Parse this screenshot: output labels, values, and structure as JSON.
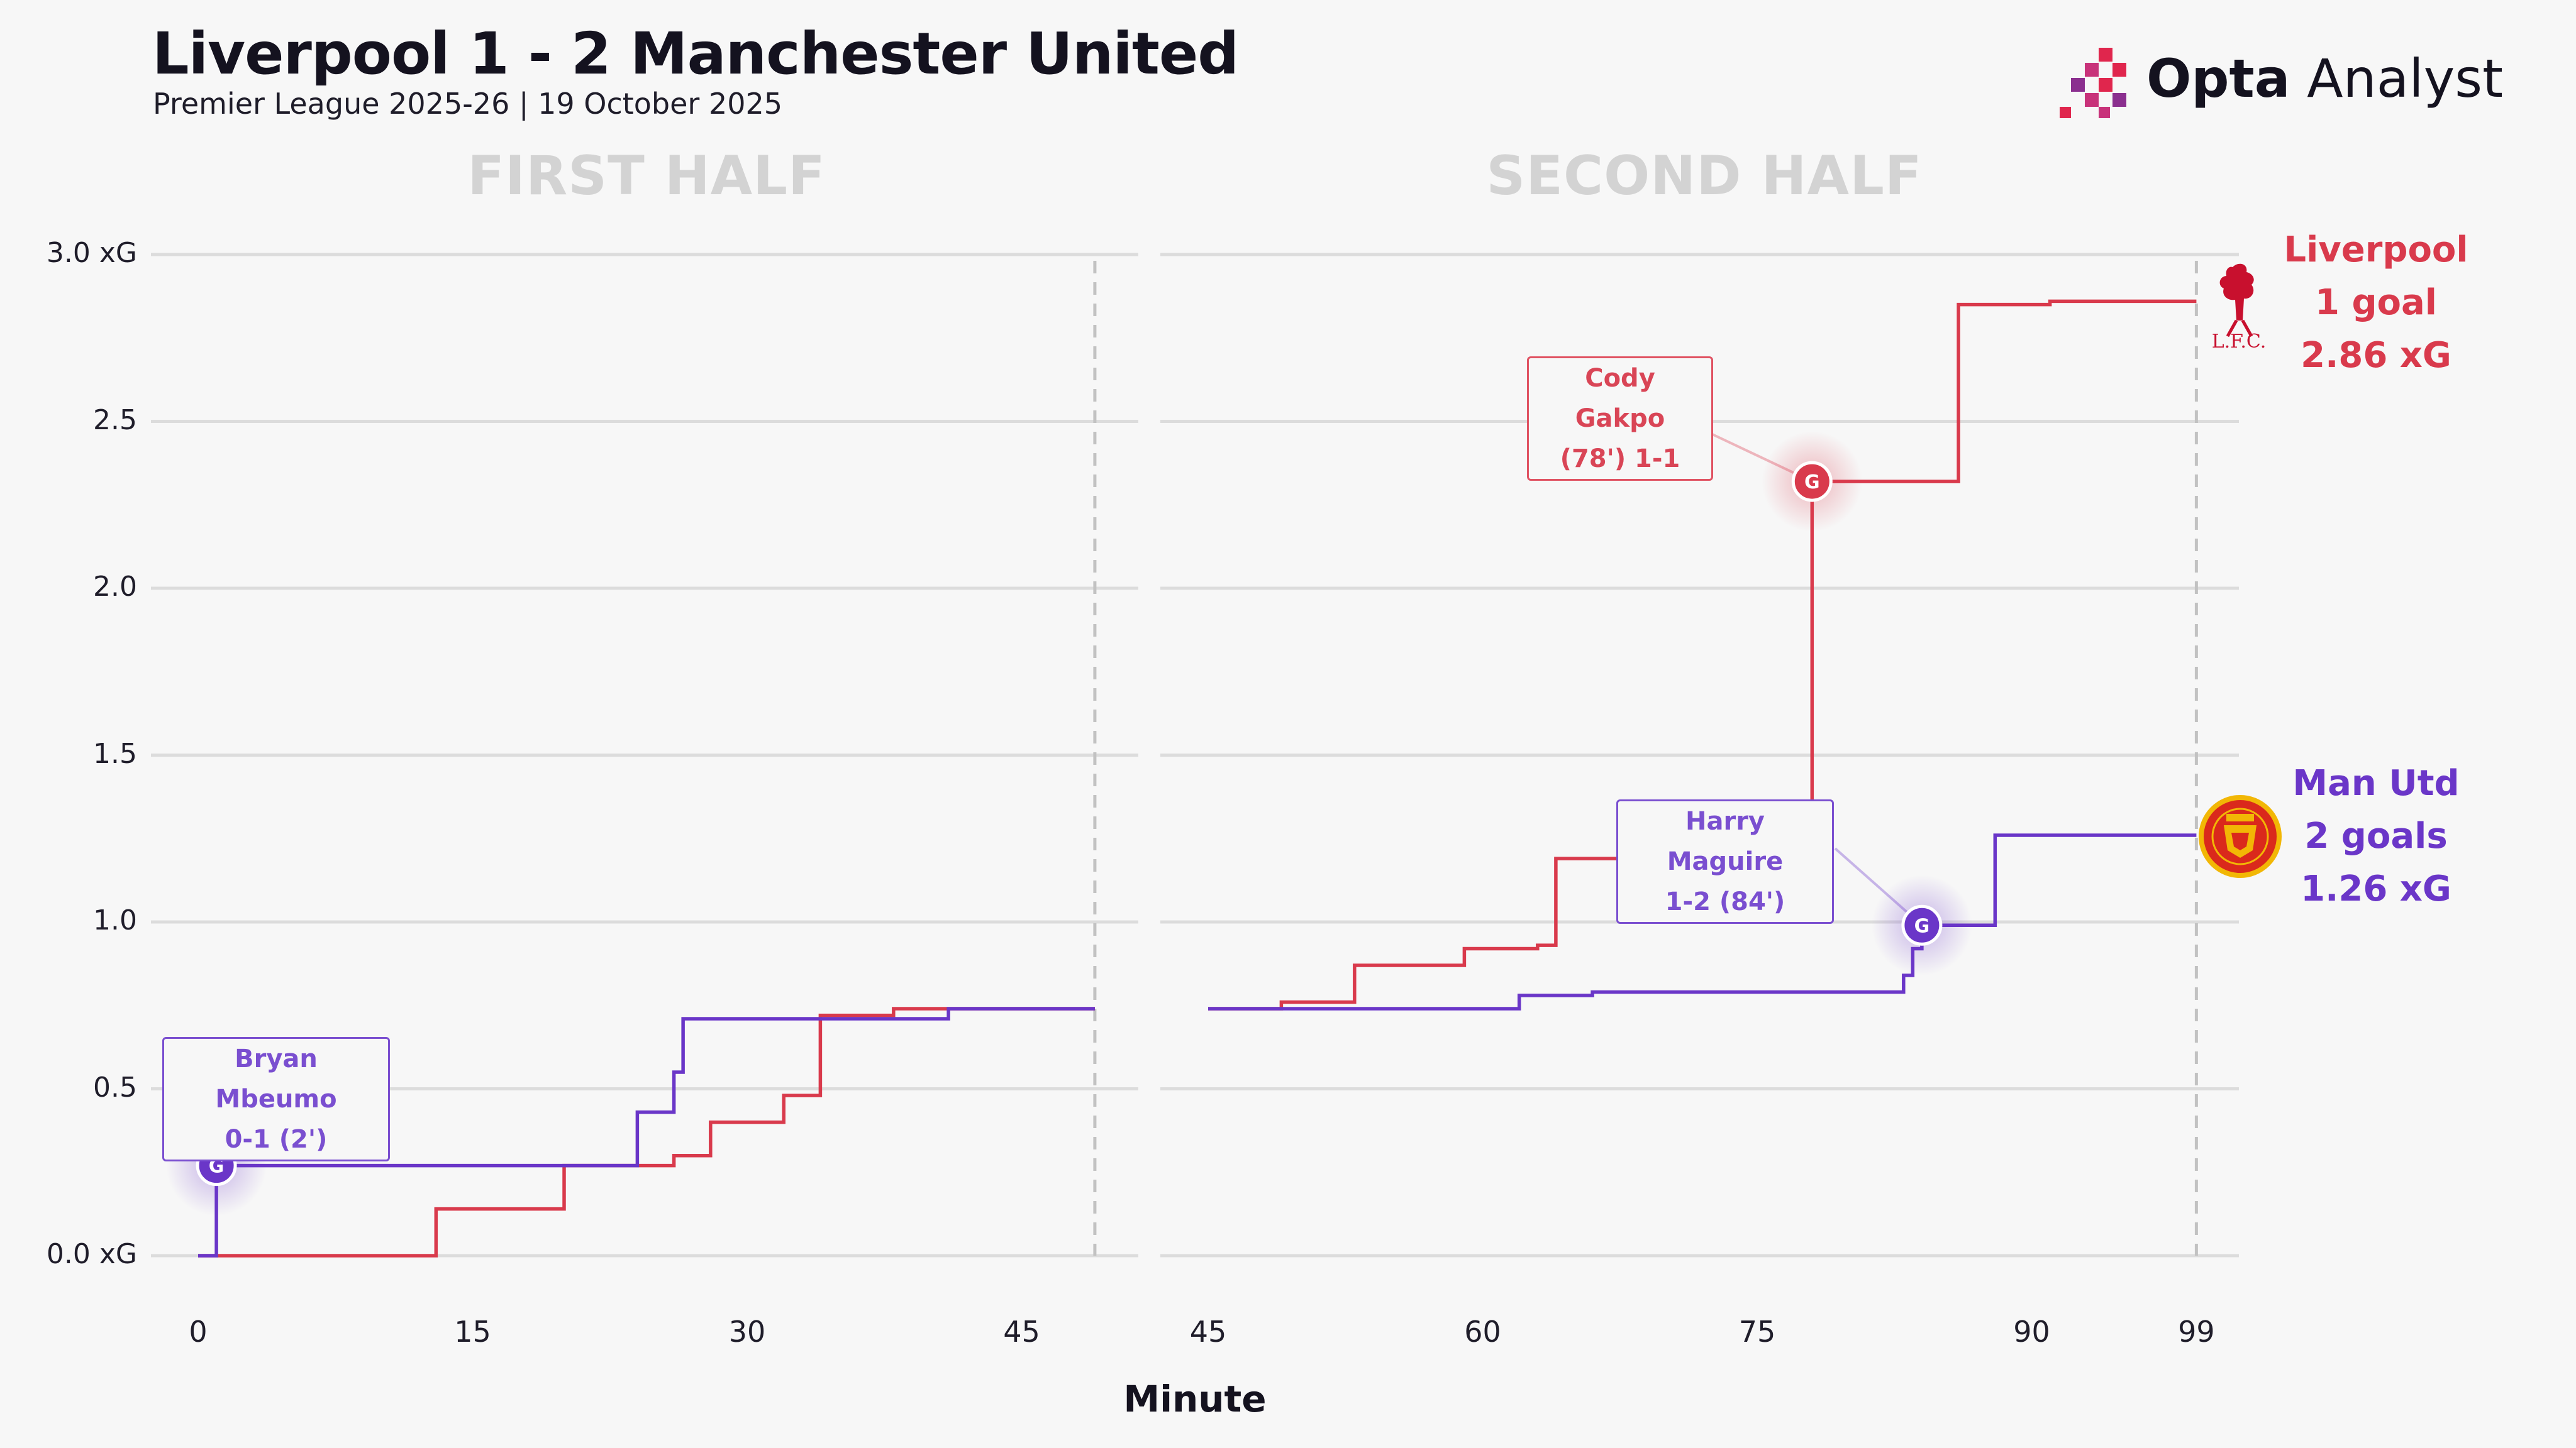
{
  "header": {
    "title": "Liverpool 1 - 2 Manchester United",
    "subtitle": "Premier League 2025-26 | 19 October 2025"
  },
  "brand": {
    "name_bold": "Opta",
    "name_regular": " Analyst",
    "colors": [
      "#e0264d",
      "#c8327a",
      "#8b2f8f"
    ]
  },
  "halves": {
    "first": "FIRST HALF",
    "second": "SECOND HALF"
  },
  "y_ticks": [
    "0.0 xG",
    "0.5",
    "1.0",
    "1.5",
    "2.0",
    "2.5",
    "3.0 xG"
  ],
  "x_ticks_first": [
    "0",
    "15",
    "30",
    "45"
  ],
  "x_ticks_second": [
    "45",
    "60",
    "75",
    "90",
    "99"
  ],
  "chart_data": {
    "type": "line",
    "xlabel": "Minute",
    "ylabel": "",
    "ylim": [
      0,
      3.0
    ],
    "first_half_xlim": [
      0,
      49
    ],
    "second_half_xlim": [
      45,
      99
    ],
    "grid": true,
    "series": [
      {
        "name": "Liverpool",
        "color": "#d93a4c",
        "first_half": [
          [
            0,
            0
          ],
          [
            13,
            0.14
          ],
          [
            20,
            0.27
          ],
          [
            26,
            0.3
          ],
          [
            28,
            0.4
          ],
          [
            32,
            0.48
          ],
          [
            34,
            0.72
          ],
          [
            38,
            0.74
          ],
          [
            41,
            0.74
          ],
          [
            49,
            0.74
          ]
        ],
        "second_half": [
          [
            45,
            0.74
          ],
          [
            49,
            0.76
          ],
          [
            53,
            0.87
          ],
          [
            59,
            0.92
          ],
          [
            63,
            0.93
          ],
          [
            64,
            1.19
          ],
          [
            68,
            1.22
          ],
          [
            77,
            1.3
          ],
          [
            78,
            2.32
          ],
          [
            86,
            2.85
          ],
          [
            91,
            2.86
          ],
          [
            99,
            2.86
          ]
        ]
      },
      {
        "name": "Man Utd",
        "color": "#6a36c8",
        "first_half": [
          [
            0,
            0
          ],
          [
            1,
            0.27
          ],
          [
            23,
            0.27
          ],
          [
            24,
            0.43
          ],
          [
            26,
            0.55
          ],
          [
            26.5,
            0.71
          ],
          [
            41,
            0.74
          ],
          [
            49,
            0.74
          ]
        ],
        "second_half": [
          [
            45,
            0.74
          ],
          [
            62,
            0.78
          ],
          [
            66,
            0.79
          ],
          [
            83,
            0.84
          ],
          [
            83.5,
            0.92
          ],
          [
            84,
            0.99
          ],
          [
            88,
            1.26
          ],
          [
            99,
            1.26
          ]
        ]
      }
    ],
    "goals": [
      {
        "team": "Man Utd",
        "half": "first",
        "minute": 1,
        "xg": 0.27,
        "label": "G"
      },
      {
        "team": "Liverpool",
        "half": "second",
        "minute": 78,
        "xg": 2.32,
        "label": "G"
      },
      {
        "team": "Man Utd",
        "half": "second",
        "minute": 84,
        "xg": 0.99,
        "label": "G"
      }
    ]
  },
  "annotations": {
    "mbeumo": {
      "line1": "Bryan Mbeumo",
      "line2": "0-1 (2')"
    },
    "gakpo": {
      "line1": "Cody Gakpo",
      "line2": "(78') 1-1"
    },
    "maguire": {
      "line1": "Harry Maguire",
      "line2": "1-2 (84')"
    }
  },
  "teams": {
    "liverpool": {
      "name": "Liverpool",
      "goals": "1 goal",
      "xg": "2.86 xG",
      "crest_text": "L.F.C."
    },
    "manutd": {
      "name": "Man Utd",
      "goals": "2 goals",
      "xg": "1.26 xG"
    }
  }
}
